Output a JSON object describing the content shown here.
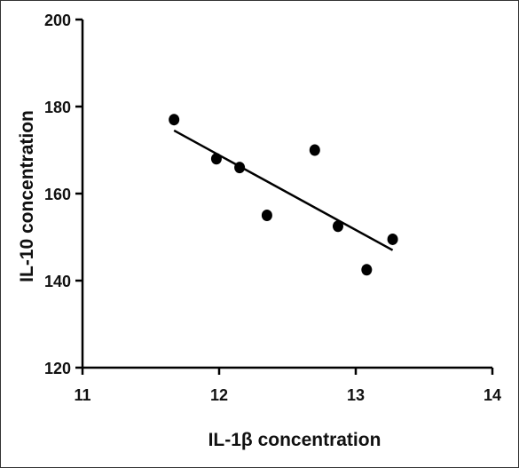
{
  "chart_data": {
    "type": "scatter",
    "xlabel": "IL-1β concentration",
    "ylabel": "IL-10 concentration",
    "xlim": [
      11,
      14
    ],
    "ylim": [
      120,
      200
    ],
    "xticks": [
      "11",
      "12",
      "13",
      "14"
    ],
    "yticks": [
      "120",
      "140",
      "160",
      "180",
      "200"
    ],
    "grid": false,
    "series": [
      {
        "points": [
          {
            "x": 11.67,
            "y": 177
          },
          {
            "x": 11.98,
            "y": 168
          },
          {
            "x": 12.15,
            "y": 166
          },
          {
            "x": 12.35,
            "y": 155
          },
          {
            "x": 12.7,
            "y": 170
          },
          {
            "x": 12.87,
            "y": 152.5
          },
          {
            "x": 13.08,
            "y": 142.5
          },
          {
            "x": 13.27,
            "y": 149.5
          }
        ]
      }
    ],
    "trendline": {
      "x": [
        11.67,
        13.27
      ],
      "y": [
        174.5,
        147
      ]
    },
    "colors": {
      "points": "#000000",
      "line": "#000000",
      "axes": "#000000"
    }
  }
}
